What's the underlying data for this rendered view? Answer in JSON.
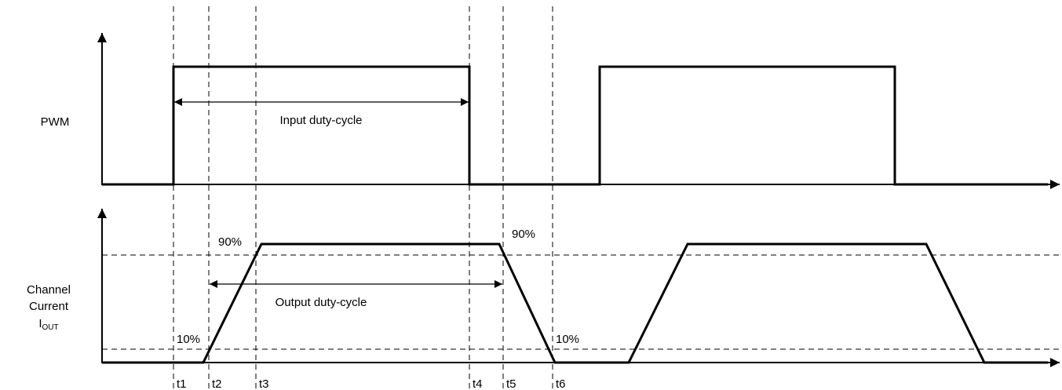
{
  "pwm": {
    "label": "PWM",
    "duty_label": "Input duty-cycle"
  },
  "current": {
    "label": [
      "Channel",
      "Current"
    ],
    "symbol": "I",
    "subscript": "OUT",
    "duty_label": "Output duty-cycle",
    "rise_labels": [
      "10%",
      "90%"
    ],
    "fall_labels": [
      "90%",
      "10%"
    ]
  },
  "time_markers": [
    "t1",
    "t2",
    "t3",
    "t4",
    "t5",
    "t6"
  ]
}
